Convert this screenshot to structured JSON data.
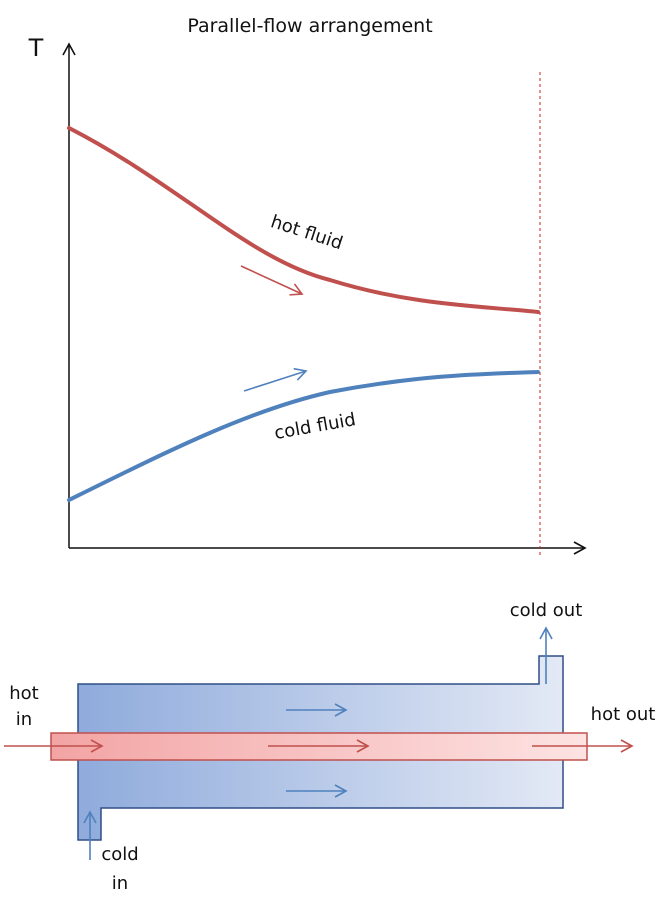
{
  "title": "Parallel-flow arrangement",
  "axis": {
    "y_label": "T"
  },
  "curves": {
    "hot": {
      "label": "hot fluid",
      "color": "#c0504d"
    },
    "cold": {
      "label": "cold fluid",
      "color": "#4f81bd"
    }
  },
  "exchanger": {
    "hot_in_line1": "hot",
    "hot_in_line2": "in",
    "hot_out": "hot out",
    "cold_out": "cold out",
    "cold_in_line1": "cold",
    "cold_in_line2": "in",
    "shell_color": "#8eaadb",
    "tube_color": "#f4a6a6"
  },
  "marker_line_color": "#cc2222"
}
